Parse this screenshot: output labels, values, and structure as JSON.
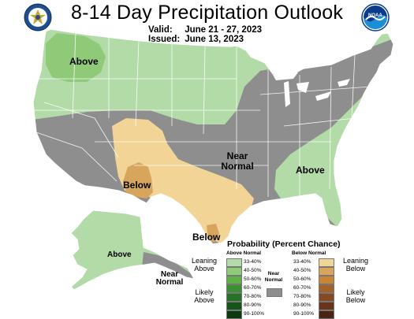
{
  "header": {
    "title": "8-14 Day Precipitation Outlook",
    "valid_label": "Valid:",
    "valid_value": "June 21 - 27, 2023",
    "issued_label": "Issued:",
    "issued_value": "June 13, 2023"
  },
  "logos": {
    "left": "doc-seal-icon",
    "right": "noaa-logo-icon",
    "right_text": "NOAA"
  },
  "map_labels": {
    "northwest": "Above",
    "southwest_core": "Below",
    "central": "Near\nNormal",
    "southeast": "Above",
    "texas_coast": "Below",
    "alaska": "Above",
    "alaska_south": "Near\nNormal"
  },
  "legend": {
    "title": "Probability (Percent Chance)",
    "above_header": "Above Normal",
    "below_header": "Below Normal",
    "near_normal_label": "Near\nNormal",
    "leaning_above": "Leaning\nAbove",
    "likely_above": "Likely\nAbove",
    "leaning_below": "Leaning\nBelow",
    "likely_below": "Likely\nBelow",
    "above": [
      {
        "pct": "33-40%",
        "color": "#b3dba8"
      },
      {
        "pct": "40-50%",
        "color": "#8fca79"
      },
      {
        "pct": "50-60%",
        "color": "#5fb145"
      },
      {
        "pct": "60-70%",
        "color": "#3a9032"
      },
      {
        "pct": "70-80%",
        "color": "#267227"
      },
      {
        "pct": "80-90%",
        "color": "#16541a"
      },
      {
        "pct": "90-100%",
        "color": "#0c3a10"
      }
    ],
    "below": [
      {
        "pct": "33-40%",
        "color": "#f2d496"
      },
      {
        "pct": "40-50%",
        "color": "#d8a55d"
      },
      {
        "pct": "50-60%",
        "color": "#c98535"
      },
      {
        "pct": "60-70%",
        "color": "#a4622a"
      },
      {
        "pct": "70-80%",
        "color": "#854a21"
      },
      {
        "pct": "80-90%",
        "color": "#68351a"
      },
      {
        "pct": "90-100%",
        "color": "#4a2312"
      }
    ],
    "near_normal_color": "#8e8e8e"
  },
  "colors": {
    "near_normal": "#8e8e8e",
    "above_light": "#b3dba8",
    "above_mid": "#8fca79",
    "below_light": "#f2d496",
    "below_mid": "#d8a55d",
    "state_line": "#ffffff"
  }
}
